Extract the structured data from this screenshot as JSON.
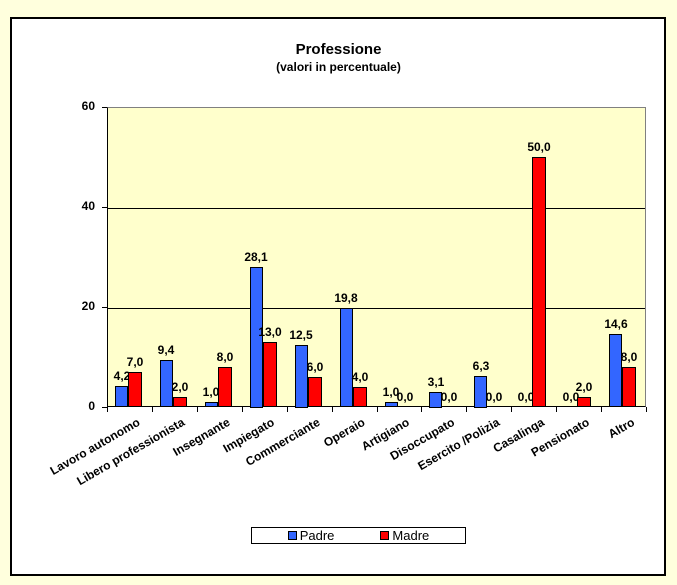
{
  "chart_data": {
    "type": "bar",
    "title": "Professione",
    "subtitle": "(valori in percentuale)",
    "xlabel": "",
    "ylabel": "",
    "ylim": [
      0,
      60
    ],
    "yticks": [
      0,
      20,
      40,
      60
    ],
    "grid": true,
    "legend_position": "bottom",
    "categories": [
      "Lavoro autonomo",
      "Libero professionista",
      "Insegnante",
      "Impiegato",
      "Commerciante",
      "Operaio",
      "Artigiano",
      "Disoccupato",
      "Esercito /Polizia",
      "Casalinga",
      "Pensionato",
      "Altro"
    ],
    "series": [
      {
        "name": "Padre",
        "color": "#3366FF",
        "values": [
          4.2,
          9.4,
          1.0,
          28.1,
          12.5,
          19.8,
          1.0,
          3.1,
          6.3,
          0.0,
          0.0,
          14.6
        ],
        "labels": [
          "4,2",
          "9,4",
          "1,0",
          "28,1",
          "12,5",
          "19,8",
          "1,0",
          "3,1",
          "6,3",
          "0,0",
          "0,0",
          "14,6"
        ]
      },
      {
        "name": "Madre",
        "color": "#FF0000",
        "values": [
          7.0,
          2.0,
          8.0,
          13.0,
          6.0,
          4.0,
          0.0,
          0.0,
          0.0,
          50.0,
          2.0,
          8.0
        ],
        "labels": [
          "7,0",
          "2,0",
          "8,0",
          "13,0",
          "6,0",
          "4,0",
          "0,0",
          "0,0",
          "0,0",
          "50,0",
          "2,0",
          "8,0"
        ]
      }
    ]
  },
  "colors": {
    "page_background": "#FFFFDD",
    "plot_background": "#FFFFCC",
    "padre": "#3366FF",
    "madre": "#FF0000"
  }
}
